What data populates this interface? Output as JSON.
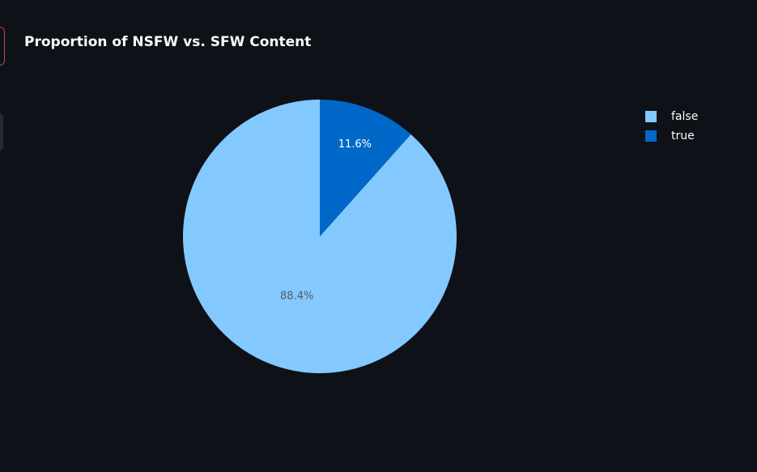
{
  "chart_data": {
    "type": "pie",
    "title": "Proportion of NSFW vs. SFW Content",
    "slices": [
      {
        "label": "false",
        "value": 88.4,
        "color": "#83c9ff",
        "text": "88.4%",
        "text_color": "#555a64"
      },
      {
        "label": "true",
        "value": 11.6,
        "color": "#0068c9",
        "text": "11.6%",
        "text_color": "#ffffff"
      }
    ],
    "legend": {
      "position": "top-right"
    },
    "sort_direction": "counterclockwise",
    "start_angle": "12 o'clock"
  },
  "colors": {
    "background": "#0e1117",
    "title": "#fafafa"
  }
}
